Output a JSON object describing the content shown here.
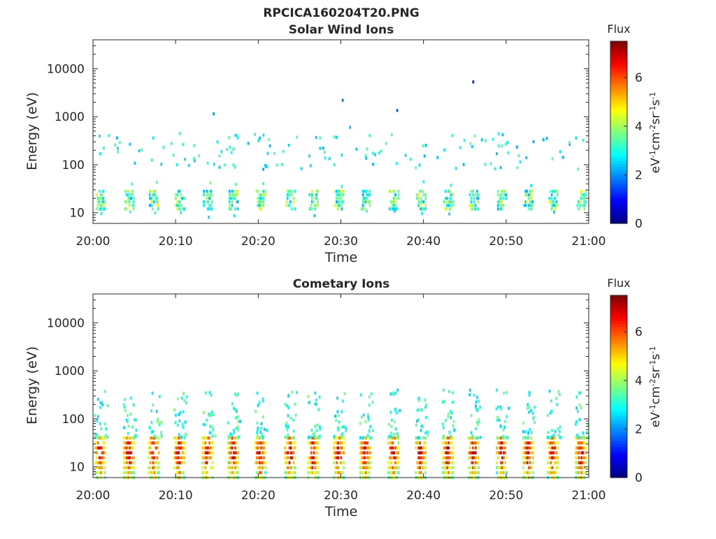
{
  "figure_title": "RPCICA160204T20.PNG",
  "chart_data": [
    {
      "type": "heatmap",
      "title": "Solar Wind Ions",
      "xlabel": "Time",
      "ylabel": "Energy (eV)",
      "x_ticks": [
        "20:00",
        "20:10",
        "20:20",
        "20:30",
        "20:40",
        "20:50",
        "21:00"
      ],
      "x_range": [
        "20:00",
        "21:00"
      ],
      "y_scale": "log",
      "y_ticks": [
        10,
        100,
        1000,
        10000
      ],
      "y_tick_labels": [
        "10",
        "100",
        "1000",
        "10000"
      ],
      "y_range": [
        6,
        40000
      ],
      "colorbar": {
        "label": "Flux",
        "units_label": "eV-1cm-2sr-1s-1",
        "ticks": [
          0,
          2,
          4,
          6
        ],
        "range": [
          0,
          7.5
        ],
        "colormap": "jet"
      },
      "bursts_minutes": [
        0.8,
        4.3,
        7.3,
        10.4,
        13.8,
        16.9,
        20.2,
        23.8,
        26.6,
        29.7,
        32.9,
        36.3,
        39.6,
        42.9,
        46.0,
        49.4,
        52.6,
        55.6,
        59.0
      ],
      "energy_band_ev": [
        12,
        28
      ],
      "flux_peak": 4.6,
      "sparse_flux_levels": [
        2.2,
        3.6
      ],
      "sparse_energy_range_ev": [
        80,
        450
      ],
      "isolated_points": [
        {
          "minute": 14.5,
          "energy_ev": 1150,
          "flux": 2.1
        },
        {
          "minute": 30.1,
          "energy_ev": 2200,
          "flux": 1.8
        },
        {
          "minute": 36.7,
          "energy_ev": 1350,
          "flux": 1.6
        },
        {
          "minute": 45.9,
          "energy_ev": 5300,
          "flux": 1.2
        },
        {
          "minute": 31.0,
          "energy_ev": 600,
          "flux": 2.3
        }
      ]
    },
    {
      "type": "heatmap",
      "title": "Cometary Ions",
      "xlabel": "Time",
      "ylabel": "Energy (eV)",
      "x_ticks": [
        "20:00",
        "20:10",
        "20:20",
        "20:30",
        "20:40",
        "20:50",
        "21:00"
      ],
      "x_range": [
        "20:00",
        "21:00"
      ],
      "y_scale": "log",
      "y_ticks": [
        10,
        100,
        1000,
        10000
      ],
      "y_tick_labels": [
        "10",
        "100",
        "1000",
        "10000"
      ],
      "y_range": [
        6,
        40000
      ],
      "colorbar": {
        "label": "Flux",
        "units_label": "eV-1cm-2sr-1s-1",
        "ticks": [
          0,
          2,
          4,
          6
        ],
        "range": [
          0,
          7.5
        ],
        "colormap": "jet"
      },
      "bursts_minutes": [
        0.8,
        4.3,
        7.3,
        10.4,
        13.8,
        16.9,
        20.2,
        23.8,
        26.6,
        29.7,
        32.9,
        36.3,
        39.6,
        42.9,
        46.0,
        49.4,
        52.6,
        55.6,
        59.0
      ],
      "energy_band_ev": [
        6,
        40
      ],
      "flux_peak": 6.8,
      "upper_energy_range_ev": [
        40,
        400
      ],
      "upper_flux_levels": [
        2.4,
        3.8
      ]
    }
  ]
}
